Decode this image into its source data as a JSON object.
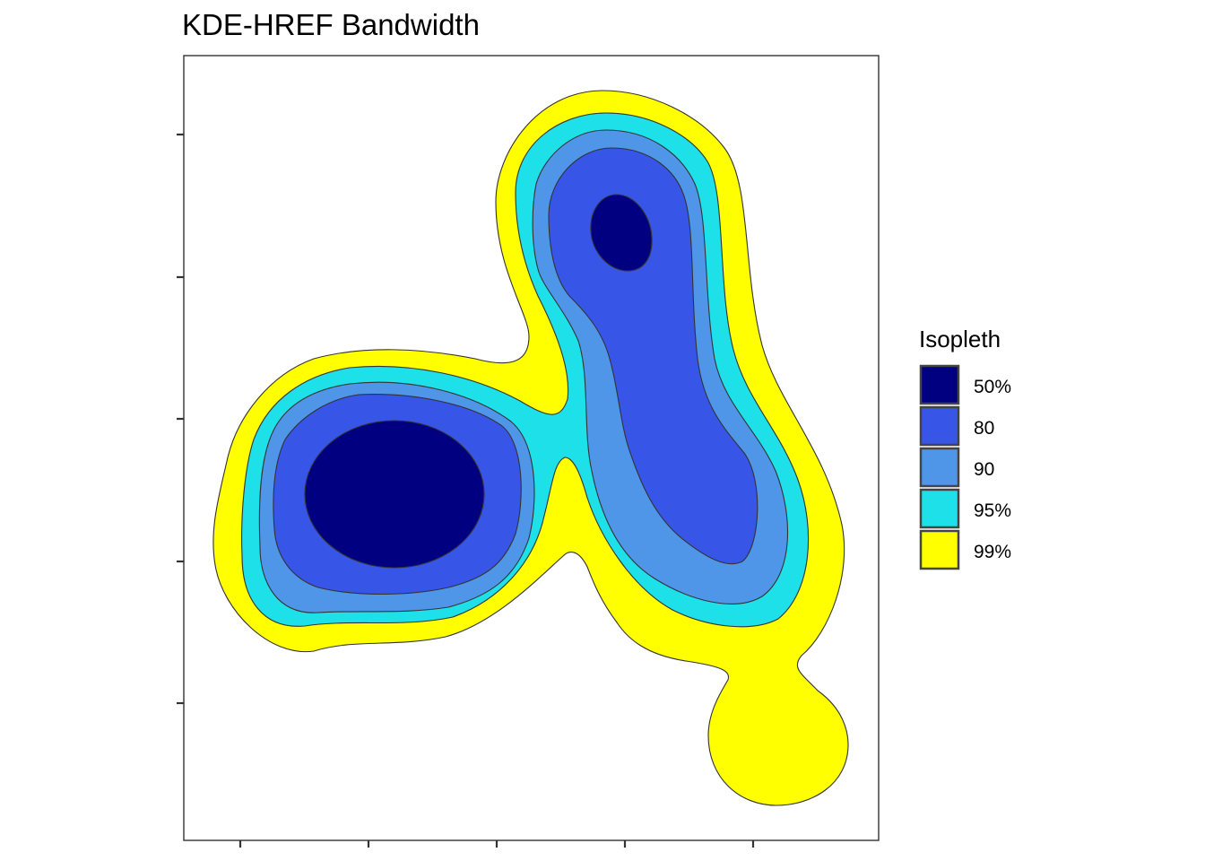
{
  "chart_data": {
    "type": "contour",
    "title": "KDE-HREF Bandwidth",
    "xlabel": "",
    "ylabel": "",
    "x_tick_labels": [
      "",
      "",
      "",
      "",
      ""
    ],
    "y_tick_labels": [
      "",
      "",
      "",
      "",
      ""
    ],
    "grid": false,
    "legend_position": "right",
    "legend": {
      "title": "Isopleth",
      "items": [
        {
          "label": "50%",
          "color": "#000080"
        },
        {
          "label": "80",
          "color": "#3755E6"
        },
        {
          "label": "90",
          "color": "#4F96E8"
        },
        {
          "label": "95%",
          "color": "#1EE0E8"
        },
        {
          "label": "99%",
          "color": "#FFFF00"
        }
      ]
    },
    "isopleths": [
      {
        "level": "99%",
        "color": "#FFFF00",
        "description": "outermost region spanning both cores, with a separate southeast lobe"
      },
      {
        "level": "95%",
        "color": "#1EE0E8",
        "description": "connected band around west and northeast cores"
      },
      {
        "level": "90%",
        "color": "#4F96E8",
        "description": "two separate regions: west core and elongated northeast core"
      },
      {
        "level": "80%",
        "color": "#3755E6",
        "description": "two separate regions: west core and elongated northeast core"
      },
      {
        "level": "50%",
        "color": "#000080",
        "description": "two small core regions: large west ellipse and small northeast ellipse"
      }
    ]
  }
}
